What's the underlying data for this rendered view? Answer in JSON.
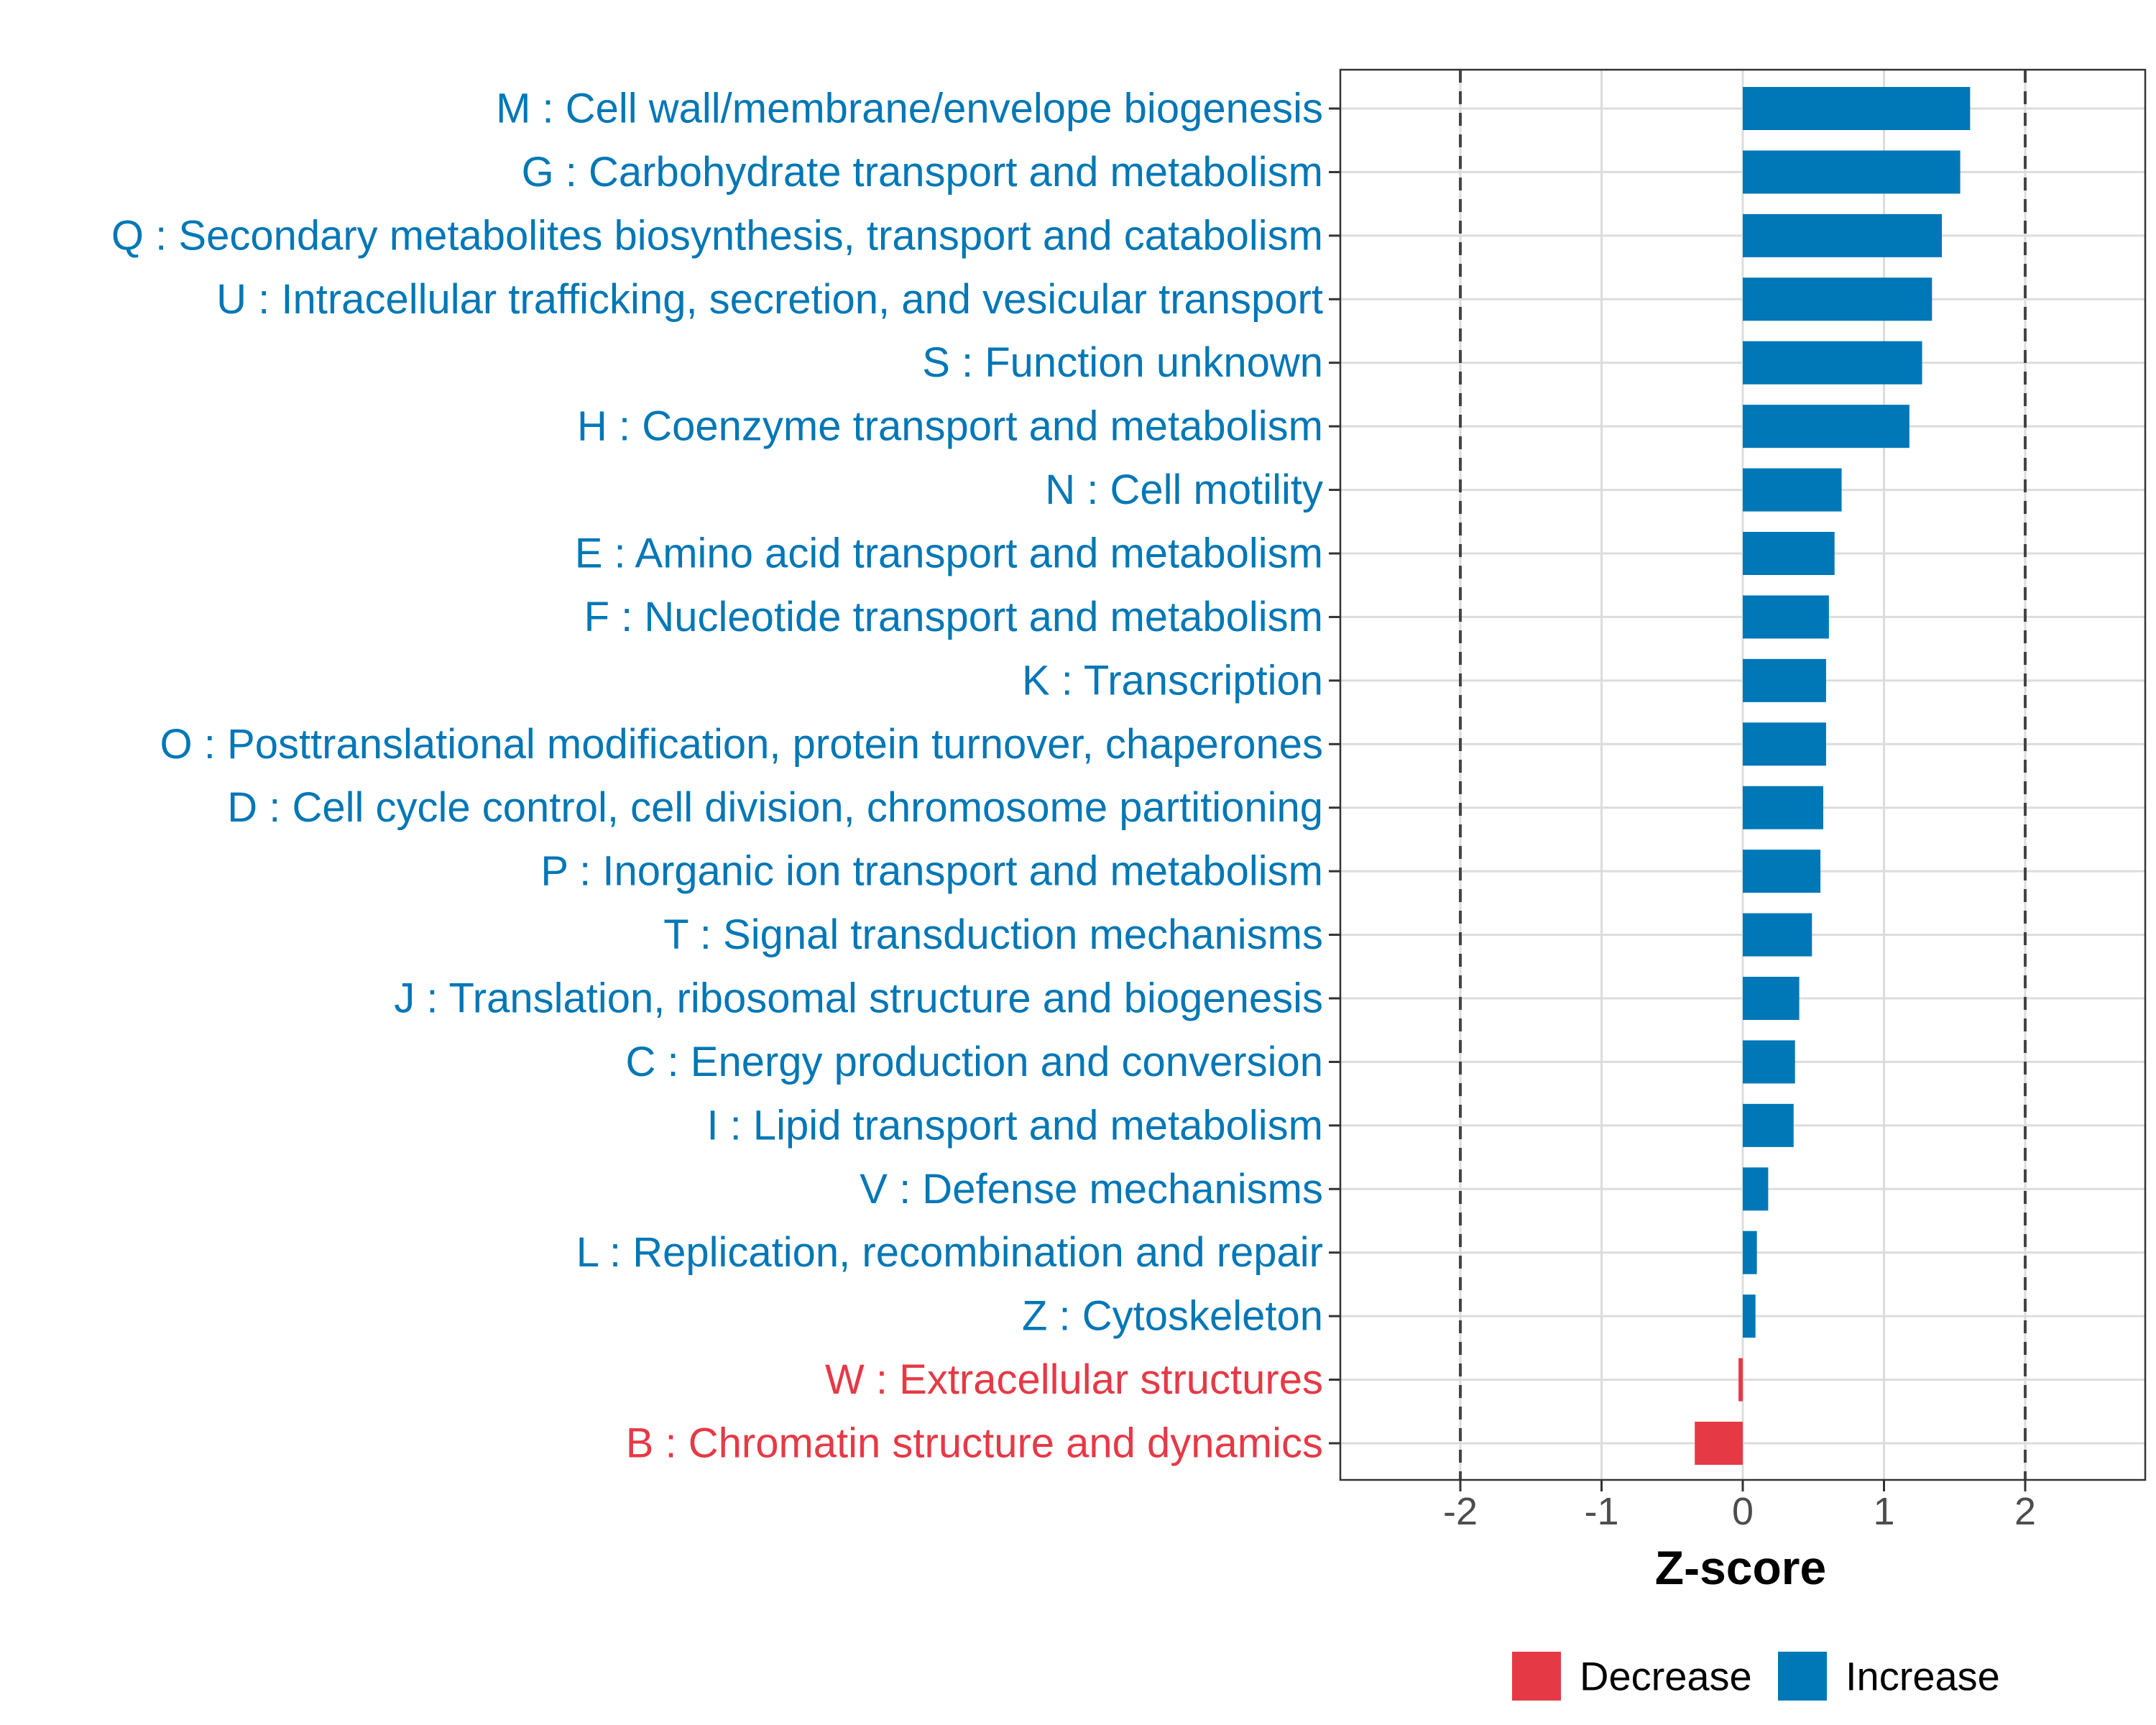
{
  "chart_data": {
    "type": "bar",
    "orientation": "horizontal",
    "xlabel": "Z-score",
    "xlim": [
      -2.85,
      2.85
    ],
    "xticks": [
      -2,
      -1,
      0,
      1,
      2
    ],
    "tick_labels": [
      "-2",
      "-1",
      "0",
      "1",
      "2"
    ],
    "reference_lines": [
      -2,
      2
    ],
    "grid": true,
    "colors": {
      "Decrease": "#E63946",
      "Increase": "#0077B6"
    },
    "legend": {
      "position": "bottom",
      "entries": [
        {
          "label": "Decrease",
          "color": "#E63946"
        },
        {
          "label": "Increase",
          "color": "#0077B6"
        }
      ]
    },
    "categories": [
      "M : Cell wall/membrane/envelope biogenesis",
      "G : Carbohydrate transport and metabolism",
      "Q : Secondary metabolites biosynthesis, transport and catabolism",
      "U : Intracellular trafficking, secretion, and vesicular transport",
      "S : Function unknown",
      "H : Coenzyme transport and metabolism",
      "N : Cell motility",
      "E : Amino acid transport and metabolism",
      "F : Nucleotide transport and metabolism",
      "K : Transcription",
      "O : Posttranslational modification, protein turnover, chaperones",
      "D : Cell cycle control, cell division, chromosome partitioning",
      "P : Inorganic ion transport and metabolism",
      "T : Signal transduction mechanisms",
      "J : Translation, ribosomal structure and biogenesis",
      "C : Energy production and conversion",
      "I : Lipid transport and metabolism",
      "V : Defense mechanisms",
      "L : Replication, recombination and repair",
      "Z : Cytoskeleton",
      "W : Extracellular structures",
      "B : Chromatin structure and dynamics"
    ],
    "values": [
      1.61,
      1.54,
      1.41,
      1.34,
      1.27,
      1.18,
      0.7,
      0.65,
      0.61,
      0.59,
      0.59,
      0.57,
      0.55,
      0.49,
      0.4,
      0.37,
      0.36,
      0.18,
      0.1,
      0.09,
      -0.03,
      -0.34
    ],
    "direction": [
      "Increase",
      "Increase",
      "Increase",
      "Increase",
      "Increase",
      "Increase",
      "Increase",
      "Increase",
      "Increase",
      "Increase",
      "Increase",
      "Increase",
      "Increase",
      "Increase",
      "Increase",
      "Increase",
      "Increase",
      "Increase",
      "Increase",
      "Increase",
      "Decrease",
      "Decrease"
    ]
  }
}
